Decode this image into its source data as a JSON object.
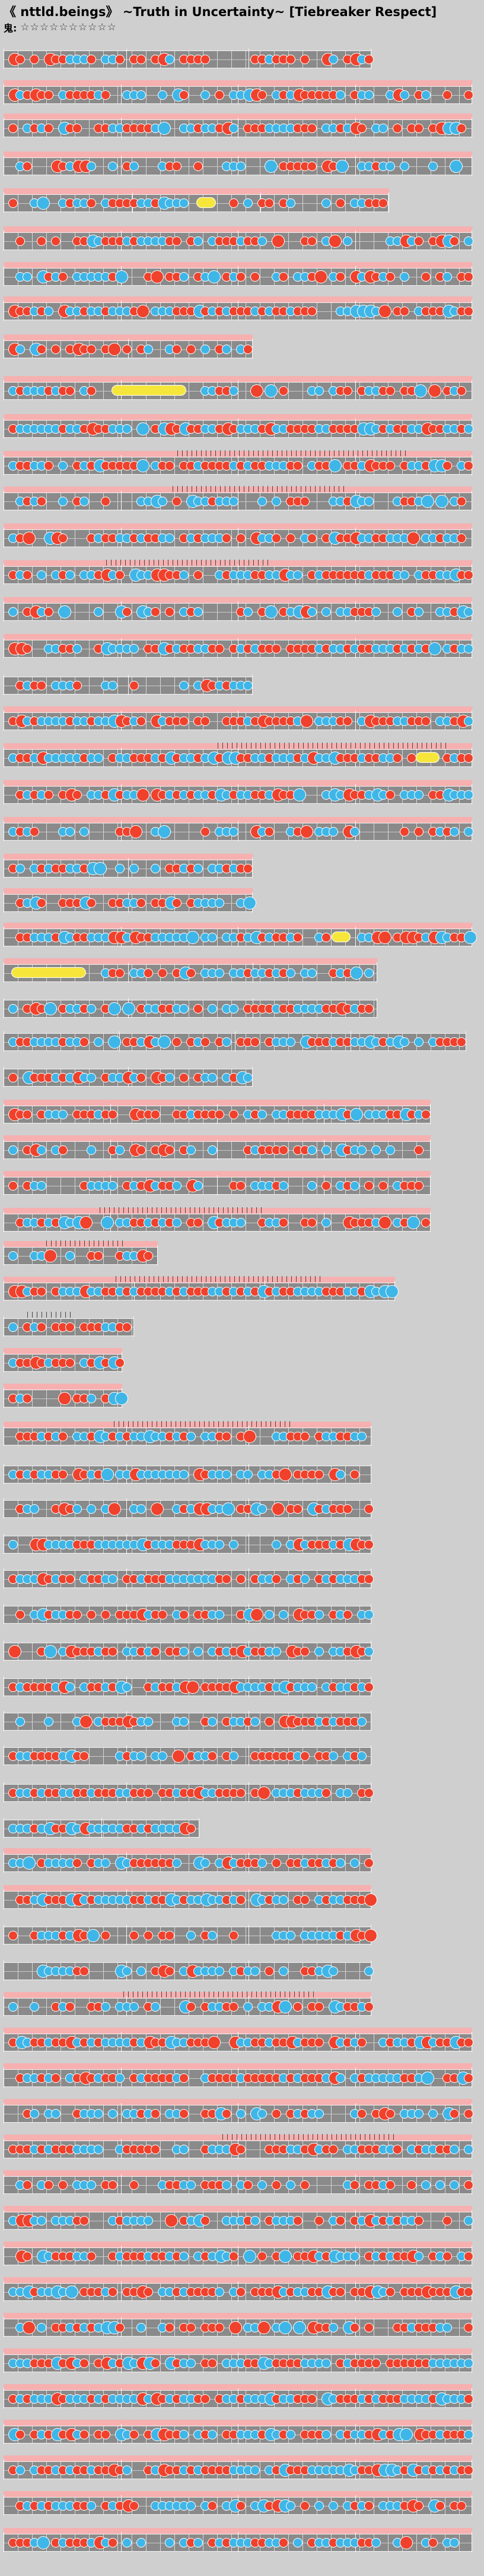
{
  "title": "《 nttld.beings》 ~Truth in Uncertainty~ [Tiebreaker Respect]",
  "difficulty": {
    "label": "鬼:",
    "stars": "☆☆☆☆☆☆☆☆☆☆",
    "star_count": 10
  },
  "colors": {
    "background": "#cfcfcf",
    "lane": "#8a8a8a",
    "don": "#f0412c",
    "ka": "#3fb6e8",
    "roll": "#f6e63c",
    "gogo_highlight": "#f6b0b0"
  }
}
